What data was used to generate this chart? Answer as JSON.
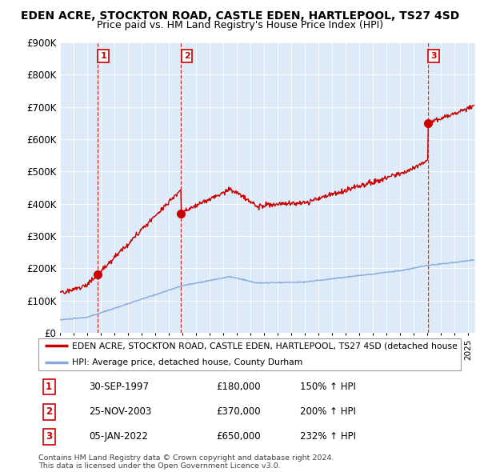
{
  "title": "EDEN ACRE, STOCKTON ROAD, CASTLE EDEN, HARTLEPOOL, TS27 4SD",
  "subtitle": "Price paid vs. HM Land Registry's House Price Index (HPI)",
  "ylim": [
    0,
    900000
  ],
  "yticks": [
    0,
    100000,
    200000,
    300000,
    400000,
    500000,
    600000,
    700000,
    800000,
    900000
  ],
  "ytick_labels": [
    "£0",
    "£100K",
    "£200K",
    "£300K",
    "£400K",
    "£500K",
    "£600K",
    "£700K",
    "£800K",
    "£900K"
  ],
  "background_color": "#eef4fb",
  "plot_bg": "#ddeaf7",
  "grid_color": "#ffffff",
  "sale_points": [
    {
      "date_x": 1997.75,
      "price": 180000,
      "label": "1"
    },
    {
      "date_x": 2003.9,
      "price": 370000,
      "label": "2"
    },
    {
      "date_x": 2022.02,
      "price": 650000,
      "label": "3"
    }
  ],
  "sale_table": [
    {
      "num": "1",
      "date": "30-SEP-1997",
      "price": "£180,000",
      "hpi": "150% ↑ HPI"
    },
    {
      "num": "2",
      "date": "25-NOV-2003",
      "price": "£370,000",
      "hpi": "200% ↑ HPI"
    },
    {
      "num": "3",
      "date": "05-JAN-2022",
      "price": "£650,000",
      "hpi": "232% ↑ HPI"
    }
  ],
  "legend_entries": [
    {
      "label": "EDEN ACRE, STOCKTON ROAD, CASTLE EDEN, HARTLEPOOL, TS27 4SD (detached house",
      "color": "#cc0000"
    },
    {
      "label": "HPI: Average price, detached house, County Durham",
      "color": "#88aadd"
    }
  ],
  "footer": [
    "Contains HM Land Registry data © Crown copyright and database right 2024.",
    "This data is licensed under the Open Government Licence v3.0."
  ],
  "xmin": 1995.0,
  "xmax": 2025.5,
  "title_fontsize": 10,
  "subtitle_fontsize": 9
}
